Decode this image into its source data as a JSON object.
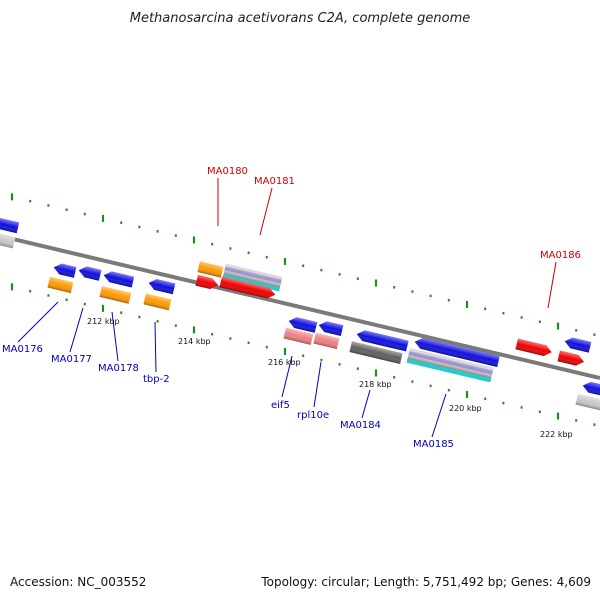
{
  "title": "Methanosarcina acetivorans C2A, complete genome",
  "footer": {
    "accession": "Accession: NC_003552",
    "summary": "Topology: circular; Length: 5,751,492 bp; Genes: 4,609"
  },
  "colors": {
    "backbone": "#7a7a7a",
    "tick": "#1f8a1f",
    "label_forward": "#cc0000",
    "label_reverse": "#0000bb",
    "blue_gene": "#1010e0",
    "red_gene": "#ee0000",
    "orange_gene": "#ff9900",
    "pink_gene": "#ef8080",
    "gray_gene": "#606060",
    "lightgray_gene": "#c8c8c8",
    "cyan_gene": "#22cccc",
    "lavender_gene": "#9a90d0"
  },
  "scale_labels": [
    {
      "text": "212 kbp"
    },
    {
      "text": "214 kbp"
    },
    {
      "text": "216 kbp"
    },
    {
      "text": "218 kbp"
    },
    {
      "text": "220 kbp"
    },
    {
      "text": "222 kbp"
    }
  ],
  "gene_labels": [
    {
      "text": "MA0180",
      "strand": "forward"
    },
    {
      "text": "MA0181",
      "strand": "forward"
    },
    {
      "text": "MA0186",
      "strand": "forward"
    },
    {
      "text": "MA0176",
      "strand": "reverse"
    },
    {
      "text": "MA0177",
      "strand": "reverse"
    },
    {
      "text": "MA0178",
      "strand": "reverse"
    },
    {
      "text": "tbp-2",
      "strand": "reverse"
    },
    {
      "text": "eif5",
      "strand": "reverse"
    },
    {
      "text": "rpl10e",
      "strand": "reverse"
    },
    {
      "text": "MA0184",
      "strand": "reverse"
    },
    {
      "text": "MA0185",
      "strand": "reverse"
    }
  ]
}
